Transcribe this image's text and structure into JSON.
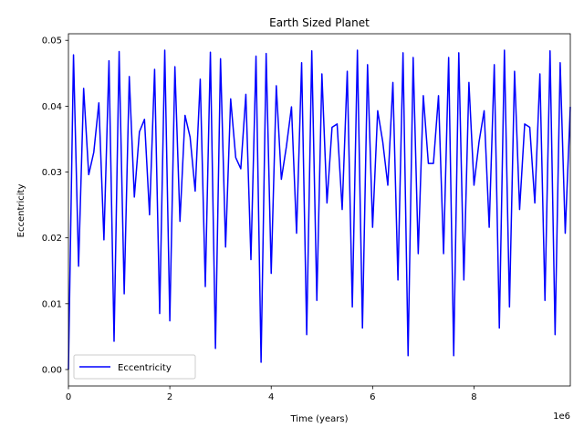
{
  "chart_data": {
    "type": "line",
    "title": "Earth Sized Planet",
    "xlabel": "Time (years)",
    "ylabel": "Eccentricity",
    "x_offset_label": "1e6",
    "xlim": [
      0,
      9.9
    ],
    "ylim": [
      -0.0025,
      0.051
    ],
    "x_ticks": [
      0,
      2,
      4,
      6,
      8
    ],
    "x_tick_labels": [
      "0",
      "2",
      "4",
      "6",
      "8"
    ],
    "y_ticks": [
      0.0,
      0.01,
      0.02,
      0.03,
      0.04,
      0.05
    ],
    "y_tick_labels": [
      "0.00",
      "0.01",
      "0.02",
      "0.03",
      "0.04",
      "0.05"
    ],
    "grid": false,
    "legend_position": "lower-left",
    "series": [
      {
        "name": "Eccentricity",
        "color": "#0000ff",
        "x": [
          0.0,
          0.1,
          0.2,
          0.3,
          0.4,
          0.5,
          0.6,
          0.7,
          0.8,
          0.9,
          1.0,
          1.1,
          1.2,
          1.3,
          1.4,
          1.5,
          1.6,
          1.7,
          1.8,
          1.9,
          2.0,
          2.1,
          2.2,
          2.3,
          2.4,
          2.5,
          2.6,
          2.7,
          2.8,
          2.9,
          3.0,
          3.1,
          3.2,
          3.3,
          3.4,
          3.5,
          3.6,
          3.7,
          3.8,
          3.9,
          4.0,
          4.1,
          4.2,
          4.3,
          4.4,
          4.5,
          4.6,
          4.7,
          4.8,
          4.9,
          5.0,
          5.1,
          5.2,
          5.3,
          5.4,
          5.5,
          5.6,
          5.7,
          5.8,
          5.9,
          6.0,
          6.1,
          6.2,
          6.3,
          6.4,
          6.5,
          6.6,
          6.7,
          6.8,
          6.9,
          7.0,
          7.1,
          7.2,
          7.3,
          7.4,
          7.5,
          7.6,
          7.7,
          7.8,
          7.9,
          8.0,
          8.1,
          8.2,
          8.3,
          8.4,
          8.5,
          8.6,
          8.7,
          8.8,
          8.9,
          9.0,
          9.1,
          9.2,
          9.3,
          9.4,
          9.5,
          9.6,
          9.7,
          9.8,
          9.9
        ],
        "y": [
          0.0,
          0.0478,
          0.0157,
          0.0427,
          0.0296,
          0.033,
          0.0405,
          0.0197,
          0.0469,
          0.0043,
          0.0483,
          0.0115,
          0.0445,
          0.0262,
          0.0361,
          0.038,
          0.0235,
          0.0456,
          0.0085,
          0.0485,
          0.0074,
          0.046,
          0.0225,
          0.0386,
          0.0353,
          0.0271,
          0.0441,
          0.0126,
          0.0482,
          0.0032,
          0.0472,
          0.0186,
          0.0411,
          0.0322,
          0.0305,
          0.0418,
          0.0167,
          0.0476,
          0.0011,
          0.048,
          0.0146,
          0.0431,
          0.0289,
          0.0339,
          0.0399,
          0.0207,
          0.0466,
          0.0053,
          0.0484,
          0.0105,
          0.0449,
          0.0253,
          0.0368,
          0.0373,
          0.0243,
          0.0453,
          0.0095,
          0.0485,
          0.0063,
          0.0463,
          0.0216,
          0.0393,
          0.0346,
          0.028,
          0.0436,
          0.0136,
          0.0481,
          0.0021,
          0.0474,
          0.0176,
          0.0416,
          0.0313,
          0.0313,
          0.0416,
          0.0176,
          0.0474,
          0.0021,
          0.0481,
          0.0136,
          0.0436,
          0.028,
          0.0346,
          0.0393,
          0.0216,
          0.0463,
          0.0063,
          0.0485,
          0.0095,
          0.0453,
          0.0243,
          0.0373,
          0.0368,
          0.0253,
          0.0449,
          0.0105,
          0.0484,
          0.0053,
          0.0466,
          0.0207,
          0.0399
        ]
      }
    ]
  }
}
